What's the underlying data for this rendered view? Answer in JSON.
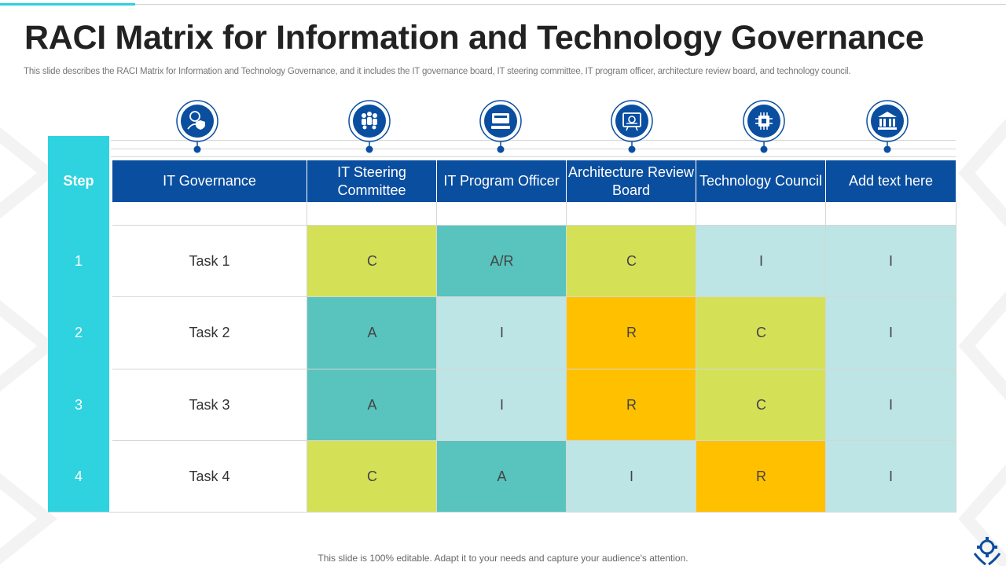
{
  "title": "RACI Matrix for Information and Technology Governance",
  "subtitle": "This slide describes the RACI Matrix  for Information and Technology Governance, and it includes the IT governance board, IT  steering committee, IT program officer, architecture review board, and technology council.",
  "footer": "This slide is 100% editable. Adapt it to your needs and capture your audience's attention.",
  "colors": {
    "header_blue": "#0a4ea0",
    "step_cyan": "#2ed3df",
    "lime": "#d4e157",
    "teal": "#58c4bd",
    "pale": "#bde5e5",
    "amber": "#ffc000",
    "icon_ring": "#0a4ea0"
  },
  "table": {
    "step_header": "Step",
    "task_header": "IT Governance",
    "roles": [
      "IT Steering Committee",
      "IT Program Officer",
      "Architecture Review Board",
      "Technology Council",
      "Add text here"
    ],
    "role_icons": [
      "user-shield-icon",
      "team-icon",
      "monitor-icon",
      "presentation-icon",
      "chip-icon",
      "bank-icon"
    ],
    "rows": [
      {
        "step": "1",
        "task": "Task 1",
        "cells": [
          "C",
          "A/R",
          "C",
          "I",
          "I"
        ],
        "styles": [
          "lime",
          "teal",
          "lime",
          "pale",
          "pale"
        ]
      },
      {
        "step": "2",
        "task": "Task 2",
        "cells": [
          "A",
          "I",
          "R",
          "C",
          "I"
        ],
        "styles": [
          "teal",
          "pale",
          "amber",
          "lime",
          "pale"
        ]
      },
      {
        "step": "3",
        "task": "Task 3",
        "cells": [
          "A",
          "I",
          "R",
          "C",
          "I"
        ],
        "styles": [
          "teal",
          "pale",
          "amber",
          "lime",
          "pale"
        ]
      },
      {
        "step": "4",
        "task": "Task 4",
        "cells": [
          "C",
          "A",
          "I",
          "R",
          "I"
        ],
        "styles": [
          "lime",
          "teal",
          "pale",
          "amber",
          "pale"
        ]
      }
    ]
  }
}
